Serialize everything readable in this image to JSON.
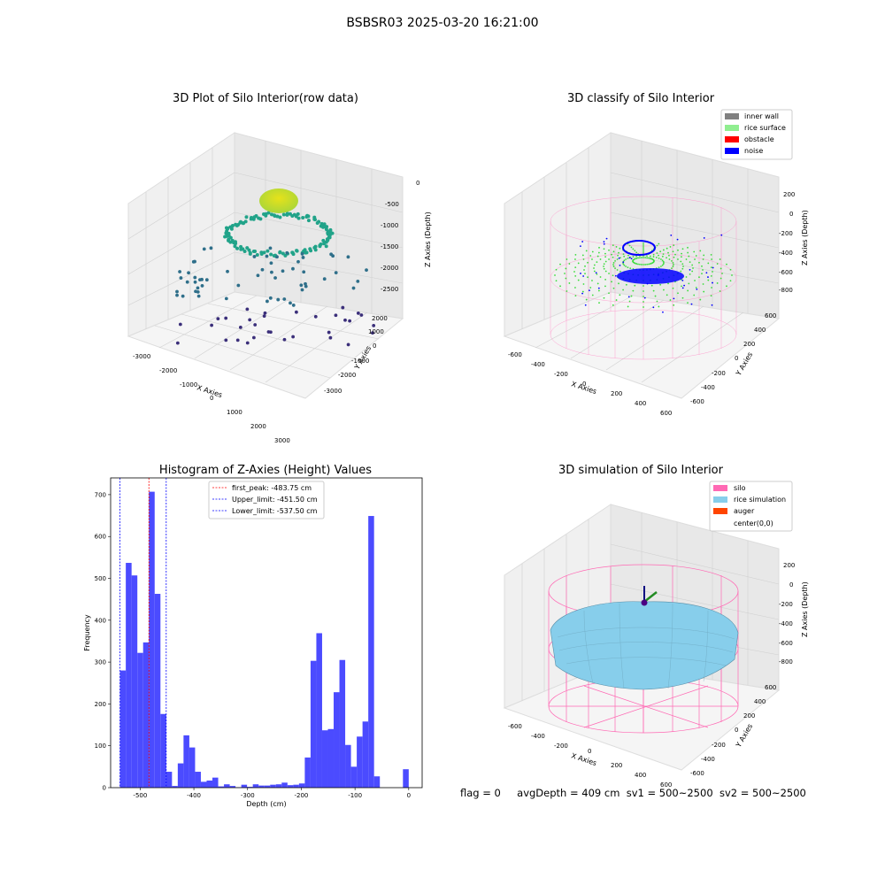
{
  "figure": {
    "title": "BSBSR03 2025-03-20 16:21:00",
    "footer": {
      "flag": "flag = 0",
      "avg_depth": "avgDepth = 409 cm",
      "sv1": "sv1 = 500~2500",
      "sv2": "sv2 = 500~2500"
    }
  },
  "chart_data": [
    {
      "type": "scatter",
      "projection": "3d",
      "title": "3D Plot of Silo Interior(row data)",
      "xlabel": "X Axies",
      "ylabel": "Y Axies",
      "zlabel": "Z Axies (Depth)",
      "x_ticks": [
        "-3000",
        "-2000",
        "-1000",
        "0",
        "1000",
        "2000",
        "3000"
      ],
      "y_ticks": [
        "-3000",
        "-2000",
        "-1000",
        "0",
        "1000",
        "2000"
      ],
      "z_ticks": [
        "-2500",
        "-2000",
        "-1500",
        "-1000",
        "-500",
        "0"
      ],
      "colormap": "viridis",
      "colors": {
        "low": "#3b2f7a",
        "mid": "#21a389",
        "high": "#e6e21a"
      }
    },
    {
      "type": "scatter",
      "projection": "3d",
      "title": "3D classify of Silo Interior",
      "xlabel": "X Axies",
      "ylabel": "Y Axies",
      "zlabel": "Z Axies (Depth)",
      "x_ticks": [
        "-600",
        "-400",
        "-200",
        "0",
        "200",
        "400",
        "600"
      ],
      "y_ticks": [
        "-600",
        "-400",
        "-200",
        "0",
        "200",
        "400",
        "600"
      ],
      "z_ticks": [
        "-800",
        "-600",
        "-400",
        "-200",
        "0",
        "200"
      ],
      "legend": [
        {
          "label": "inner wall",
          "color": "#808080"
        },
        {
          "label": "rice surface",
          "color": "#90ee90"
        },
        {
          "label": "obstacle",
          "color": "#ff0000"
        },
        {
          "label": "noise",
          "color": "#0000ff"
        }
      ],
      "legend_position": "upper-right"
    },
    {
      "type": "bar",
      "title": "Histogram of Z-Axies (Height) Values",
      "xlabel": "Depth (cm)",
      "ylabel": "Frequency",
      "xlim": [
        -555,
        25
      ],
      "ylim": [
        0,
        740
      ],
      "x_ticks": [
        -500,
        -400,
        -300,
        -200,
        -100,
        0
      ],
      "y_ticks": [
        0,
        100,
        200,
        300,
        400,
        500,
        600,
        700
      ],
      "bar_color": "#4b4bff",
      "bin_width": 10.75,
      "bins": [
        {
          "x": -537.5,
          "y": 280
        },
        {
          "x": -526.75,
          "y": 537
        },
        {
          "x": -516.0,
          "y": 507
        },
        {
          "x": -505.25,
          "y": 322
        },
        {
          "x": -494.5,
          "y": 347
        },
        {
          "x": -483.75,
          "y": 707
        },
        {
          "x": -473.0,
          "y": 463
        },
        {
          "x": -462.25,
          "y": 176
        },
        {
          "x": -451.5,
          "y": 38
        },
        {
          "x": -440.75,
          "y": 4
        },
        {
          "x": -430.0,
          "y": 58
        },
        {
          "x": -419.25,
          "y": 125
        },
        {
          "x": -408.5,
          "y": 96
        },
        {
          "x": -397.75,
          "y": 38
        },
        {
          "x": -387.0,
          "y": 14
        },
        {
          "x": -376.25,
          "y": 17
        },
        {
          "x": -365.5,
          "y": 24
        },
        {
          "x": -354.75,
          "y": 3
        },
        {
          "x": -344.0,
          "y": 8
        },
        {
          "x": -333.25,
          "y": 4
        },
        {
          "x": -322.5,
          "y": 1
        },
        {
          "x": -311.75,
          "y": 7
        },
        {
          "x": -301.0,
          "y": 2
        },
        {
          "x": -290.25,
          "y": 8
        },
        {
          "x": -279.5,
          "y": 5
        },
        {
          "x": -268.75,
          "y": 5
        },
        {
          "x": -258.0,
          "y": 7
        },
        {
          "x": -247.25,
          "y": 8
        },
        {
          "x": -236.5,
          "y": 12
        },
        {
          "x": -225.75,
          "y": 6
        },
        {
          "x": -215.0,
          "y": 7
        },
        {
          "x": -204.25,
          "y": 10
        },
        {
          "x": -193.5,
          "y": 72
        },
        {
          "x": -182.75,
          "y": 303
        },
        {
          "x": -172.0,
          "y": 369
        },
        {
          "x": -161.25,
          "y": 137
        },
        {
          "x": -150.5,
          "y": 140
        },
        {
          "x": -139.75,
          "y": 228
        },
        {
          "x": -129.0,
          "y": 305
        },
        {
          "x": -118.25,
          "y": 102
        },
        {
          "x": -107.5,
          "y": 50
        },
        {
          "x": -96.75,
          "y": 122
        },
        {
          "x": -86.0,
          "y": 158
        },
        {
          "x": -75.25,
          "y": 649
        },
        {
          "x": -64.5,
          "y": 27
        },
        {
          "x": -53.75,
          "y": 0
        },
        {
          "x": -43.0,
          "y": 0
        },
        {
          "x": -32.25,
          "y": 0
        },
        {
          "x": -21.5,
          "y": 0
        },
        {
          "x": -10.75,
          "y": 44
        }
      ],
      "vlines": [
        {
          "x": -483.75,
          "label": "first_peak: -483.75 cm",
          "color": "#ff0000"
        },
        {
          "x": -451.5,
          "label": "Upper_limit: -451.50 cm",
          "color": "#0000ff"
        },
        {
          "x": -537.5,
          "label": "Lower_limit: -537.50 cm",
          "color": "#0000ff"
        }
      ],
      "legend_position": "upper-center"
    },
    {
      "type": "surface",
      "projection": "3d",
      "title": "3D simulation of Silo Interior",
      "xlabel": "X Axies",
      "ylabel": "Y Axies",
      "zlabel": "Z Axies (Depth)",
      "x_ticks": [
        "-600",
        "-400",
        "-200",
        "0",
        "200",
        "400",
        "600"
      ],
      "y_ticks": [
        "-600",
        "-400",
        "-200",
        "0",
        "200",
        "400",
        "600"
      ],
      "z_ticks": [
        "-800",
        "-600",
        "-400",
        "-200",
        "0",
        "200"
      ],
      "legend": [
        {
          "label": "silo",
          "color": "#ff69b4"
        },
        {
          "label": "rice simulation",
          "color": "#87ceeb"
        },
        {
          "label": "auger",
          "color": "#ff4500"
        },
        {
          "label": "center(0,0)",
          "color": ""
        }
      ],
      "legend_position": "upper-right"
    }
  ]
}
